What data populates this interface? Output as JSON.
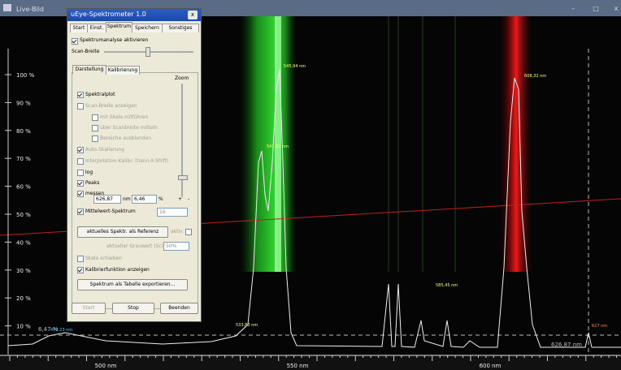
{
  "window": {
    "title": "Live-Bild",
    "controls": [
      "–",
      "□",
      "x"
    ]
  },
  "dialog": {
    "title": "uEye-Spektrometer 1.0",
    "close": "x",
    "tabs": [
      "Start",
      "Einst.",
      "Spektrum",
      "Speichern",
      "Sonstiges"
    ],
    "analysis": "Spektrumanalyse aktivieren",
    "scan_width": "Scan-Breite",
    "subtabs": [
      "Darstellung",
      "Kalibrierung"
    ],
    "zoom": "Zoom",
    "options": [
      {
        "label": "Spektralplot",
        "checked": true
      },
      {
        "label": "Scan-Breite anzeigen",
        "checked": false
      },
      {
        "label": "mit Skala mitführen",
        "checked": false
      },
      {
        "label": "über Scanbreite mitteln",
        "checked": false
      },
      {
        "label": "Bereiche ausblenden",
        "checked": false
      },
      {
        "label": "Auto-Skalierung",
        "checked": true
      },
      {
        "label": "Interpolation-Kalibr. (hann-X-Shift)",
        "checked": false
      },
      {
        "label": "log",
        "checked": false
      },
      {
        "label": "Peaks",
        "checked": true
      },
      {
        "label": "messen",
        "checked": true
      }
    ],
    "measure": {
      "wavelength": "626,87",
      "unit_nm": "nm",
      "percent": "6,46",
      "unit_percent": "%",
      "plus": "+",
      "minus": "-"
    },
    "average": {
      "label": "Mittelwert-Spektrum",
      "count": "16",
      "checked": true
    },
    "reference": {
      "button": "aktuelles Spektr. als Referenz",
      "active": "aktiv"
    },
    "gray": {
      "label": "aktueller Grauwert (Sc)",
      "value": "50%"
    },
    "shift_scale": "Skala schieben",
    "calibration": "Kalibrierfunktion anzeigen",
    "export": "Spektrum als Tabelle exportieren...",
    "buttons": [
      "Start",
      "Stop",
      "Beenden"
    ]
  },
  "plot": {
    "y_labels": [
      "100 %",
      "90 %",
      "80 %",
      "70 %",
      "60 %",
      "50 %",
      "40 %",
      "30 %",
      "20 %",
      "10 %"
    ],
    "x_labels": [
      "500 nm",
      "550 nm",
      "600 nm"
    ],
    "peaks": [
      "545,94 nm",
      "608,32 nm",
      "541,62 nm",
      "585,45 nm",
      "533,80 nm",
      "477,23 nm"
    ],
    "level": "6,47 %",
    "cursor": "627 nm",
    "cursor_readout": "626,87 nm"
  }
}
